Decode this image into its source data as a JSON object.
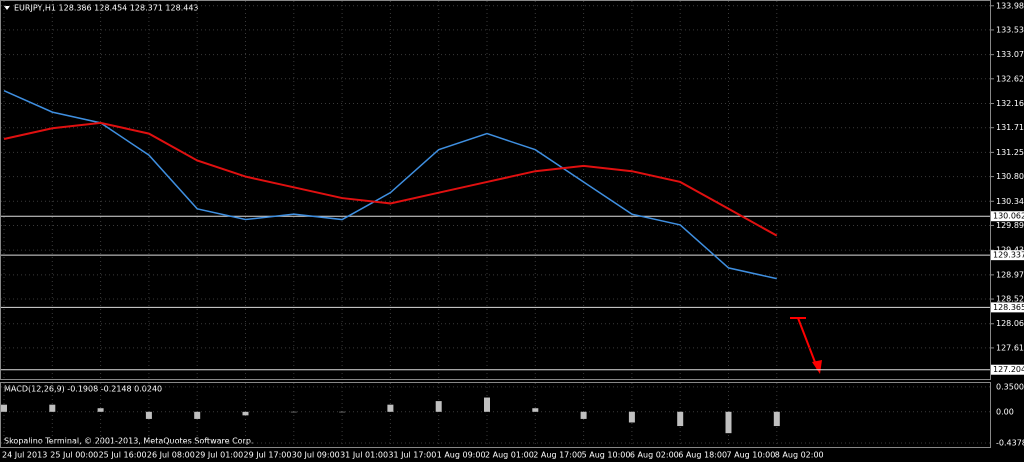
{
  "chart_data": [
    {
      "type": "line",
      "title": "EURJPY,H1  128.386 128.454 128.371 128.443",
      "categories": [
        "24 Jul 2013",
        "25 Jul 00:00",
        "25 Jul 16:00",
        "26 Jul 08:00",
        "29 Jul 01:00",
        "29 Jul 17:00",
        "30 Jul 09:00",
        "31 Jul 01:00",
        "31 Jul 17:00",
        "1 Aug 09:00",
        "2 Aug 01:00",
        "2 Aug 17:00",
        "5 Aug 10:00",
        "6 Aug 02:00",
        "6 Aug 18:00",
        "7 Aug 10:00",
        "8 Aug 02:00"
      ],
      "series": [
        {
          "color": "#3f8fe0",
          "values": [
            132.4,
            132.0,
            131.8,
            131.2,
            130.2,
            130.0,
            130.1,
            130.0,
            130.5,
            131.3,
            131.6,
            131.3,
            130.7,
            130.1,
            129.9,
            129.1,
            128.9
          ]
        },
        {
          "color": "#e01010",
          "values": [
            131.5,
            131.7,
            131.8,
            131.6,
            131.1,
            130.8,
            130.6,
            130.4,
            130.3,
            130.5,
            130.7,
            130.9,
            131.0,
            130.9,
            130.7,
            130.2,
            129.7
          ]
        }
      ],
      "levels": [
        130.062,
        129.337,
        128.365,
        127.204
      ],
      "ylim": [
        127.05,
        134.05
      ],
      "yticks": [
        {
          "value": 133.98,
          "label": "133.980"
        },
        {
          "value": 133.53,
          "label": "133.530"
        },
        {
          "value": 133.07,
          "label": "133.070"
        },
        {
          "value": 132.62,
          "label": "132.620"
        },
        {
          "value": 132.16,
          "label": "132.160"
        },
        {
          "value": 131.71,
          "label": "131.710"
        },
        {
          "value": 131.25,
          "label": "131.250"
        },
        {
          "value": 130.8,
          "label": "130.800"
        },
        {
          "value": 130.34,
          "label": "130.340"
        },
        {
          "value": 129.89,
          "label": "129.890"
        },
        {
          "value": 129.43,
          "label": "129.430"
        },
        {
          "value": 128.97,
          "label": "128.970"
        },
        {
          "value": 128.52,
          "label": "128.520"
        },
        {
          "value": 128.06,
          "label": "128.060"
        },
        {
          "value": 127.61,
          "label": "127.610"
        }
      ],
      "grid": true
    },
    {
      "type": "bar",
      "title": "MACD(12,26,9) -0.1908 -0.2148 0.0240",
      "values": [
        0.1,
        0.1,
        0.05,
        -0.1,
        -0.1,
        -0.05,
        0,
        0,
        0.1,
        0.15,
        0.2,
        0.05,
        -0.1,
        -0.15,
        -0.2,
        -0.3,
        -0.2
      ],
      "color": "#c0c0c0",
      "ylim": [
        -0.48,
        0.39
      ],
      "yticks": [
        {
          "value": 0.35,
          "label": "0.3500"
        },
        {
          "value": 0,
          "label": "0.00"
        },
        -0.4378
      ],
      "grid": true
    }
  ],
  "footer": "Skopalino Terminal, © 2001-2013, MetaQuotes Software Corp."
}
